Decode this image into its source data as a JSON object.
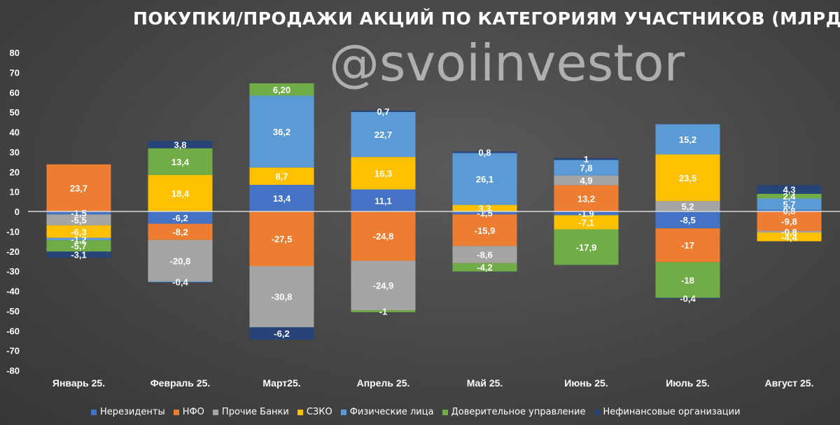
{
  "chart_data": {
    "type": "bar",
    "stacked": true,
    "title": "ПОКУПКИ/ПРОДАЖИ АКЦИЙ ПО КАТЕГОРИЯМ УЧАСТНИКОВ (МЛРД ₽)",
    "watermark": "@svoiinvestor",
    "categories": [
      "Январь 25.",
      "Февраль 25.",
      "Март25.",
      "Апрель 25.",
      "Май 25.",
      "Июнь 25.",
      "Июль 25.",
      "Август 25."
    ],
    "ylim": [
      -80,
      80
    ],
    "yticks": [
      80,
      70,
      60,
      50,
      40,
      30,
      20,
      10,
      0,
      -10,
      -20,
      -30,
      -40,
      -50,
      -60,
      -70,
      -80
    ],
    "grid": false,
    "legend_position": "bottom",
    "series": [
      {
        "name": "Нерезиденты",
        "color": "#4472C4",
        "values": [
          -1.5,
          -6.2,
          13.4,
          11.1,
          -1.5,
          -1.9,
          -8.5,
          0.8
        ],
        "labels": [
          "-1,5",
          "-6,2",
          "13,4",
          "11,1",
          "-1,5",
          "-1,9",
          "-8,5",
          "0,8"
        ]
      },
      {
        "name": "НФО",
        "color": "#ED7D31",
        "values": [
          23.7,
          -8.2,
          -27.5,
          -24.8,
          -15.9,
          13.2,
          -17,
          -9.8
        ],
        "labels": [
          "23,7",
          "-8,2",
          "-27,5",
          "-24,8",
          "-15,9",
          "13,2",
          "-17",
          "-9,8"
        ]
      },
      {
        "name": "Прочие Банки",
        "color": "#A5A5A5",
        "values": [
          -5.5,
          -20.8,
          -30.8,
          -24.9,
          -8.6,
          4.9,
          5.2,
          -0.8
        ],
        "labels": [
          "-5,5",
          "-20,8",
          "-30,8",
          "-24,9",
          "-8,6",
          "4,9",
          "5,2",
          "-0,8"
        ]
      },
      {
        "name": "СЗКО",
        "color": "#FFC000",
        "values": [
          -6.3,
          18.4,
          8.7,
          16.3,
          3.3,
          -7.1,
          23.5,
          -4.4
        ],
        "labels": [
          "-6,3",
          "18,4",
          "8,7",
          "16,3",
          "3,3",
          "-7,1",
          "23,5",
          "-4,4"
        ]
      },
      {
        "name": "Физические лица",
        "color": "#5B9BD5",
        "values": [
          -1.2,
          -0.4,
          36.2,
          22.7,
          26.1,
          7.8,
          15.2,
          5.7
        ],
        "labels": [
          "-1,2",
          "-0,4",
          "36,2",
          "22,7",
          "26,1",
          "7,8",
          "15,2",
          "5,7"
        ]
      },
      {
        "name": "Доверительное управление",
        "color": "#70AD47",
        "values": [
          -5.7,
          13.4,
          6.2,
          -1,
          -4.2,
          -17.9,
          -18,
          2.4
        ],
        "labels": [
          "-5,7",
          "13,4",
          "6,20",
          "-1",
          "-4,2",
          "-17,9",
          "-18",
          "2,4"
        ]
      },
      {
        "name": "Нефинансовые организации",
        "color": "#264478",
        "values": [
          -3.1,
          3.8,
          -6.2,
          0.7,
          0.8,
          1,
          -0.4,
          4.3
        ],
        "labels": [
          "-3,1",
          "3,8",
          "-6,2",
          "0,7",
          "0,8",
          "1",
          "-0,4",
          "4,3"
        ]
      }
    ]
  }
}
